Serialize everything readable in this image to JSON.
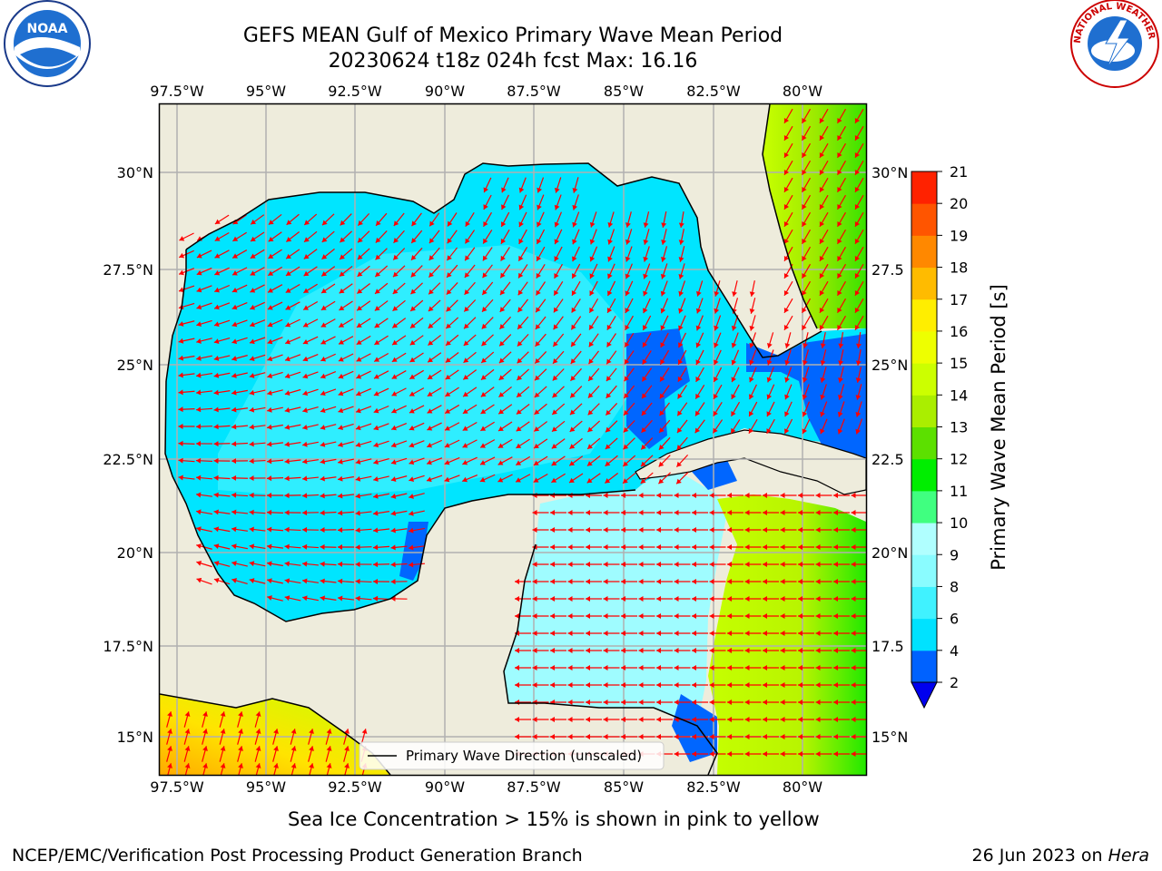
{
  "title_line1": "GEFS MEAN Gulf of Mexico Primary Wave Mean Period",
  "title_line2": "20230624 t18z 024h fcst   Max: 16.16",
  "footer_note": "Sea Ice Concentration > 15% is shown in pink to yellow",
  "footer_left": "NCEP/EMC/Verification Post Processing Product Generation Branch",
  "footer_right_date": "26 Jun 2023 on ",
  "footer_right_host": "Hera",
  "legend_label": "Primary Wave Direction (unscaled)",
  "colorbar_label": "Primary Wave Mean Period [s]",
  "logos": {
    "noaa": "NOAA",
    "nws": "NATIONAL WEATHER SERVICE"
  },
  "lon_labels": [
    "97.5°W",
    "95°W",
    "92.5°W",
    "90°W",
    "87.5°W",
    "85°W",
    "82.5°W",
    "80°W"
  ],
  "lat_labels_left": [
    "30°N",
    "27.5°N",
    "25°N",
    "22.5°N",
    "20°N",
    "17.5°N",
    "15°N"
  ],
  "lat_labels_right": [
    "30°N",
    "27.5",
    "25°N",
    "22.5",
    "20°N",
    "17.5",
    "15°N"
  ],
  "colorbar": {
    "ticks": [
      "2",
      "4",
      "6",
      "8",
      "9",
      "10",
      "11",
      "12",
      "13",
      "14",
      "15",
      "16",
      "17",
      "18",
      "19",
      "20",
      "21"
    ],
    "colors": [
      "#0062ff",
      "#00e2ff",
      "#40f2ff",
      "#8afcff",
      "#b0ffff",
      "#40ff80",
      "#00ee00",
      "#5ce000",
      "#aaee00",
      "#ccff00",
      "#eeff00",
      "#ffee00",
      "#ffbb00",
      "#ff8800",
      "#ff5500",
      "#ff2200"
    ],
    "under_color": "#0000ee"
  },
  "colors": {
    "land": "#eeecdc",
    "arrow": "#ff0000",
    "grid": "#b0b0b0"
  }
}
